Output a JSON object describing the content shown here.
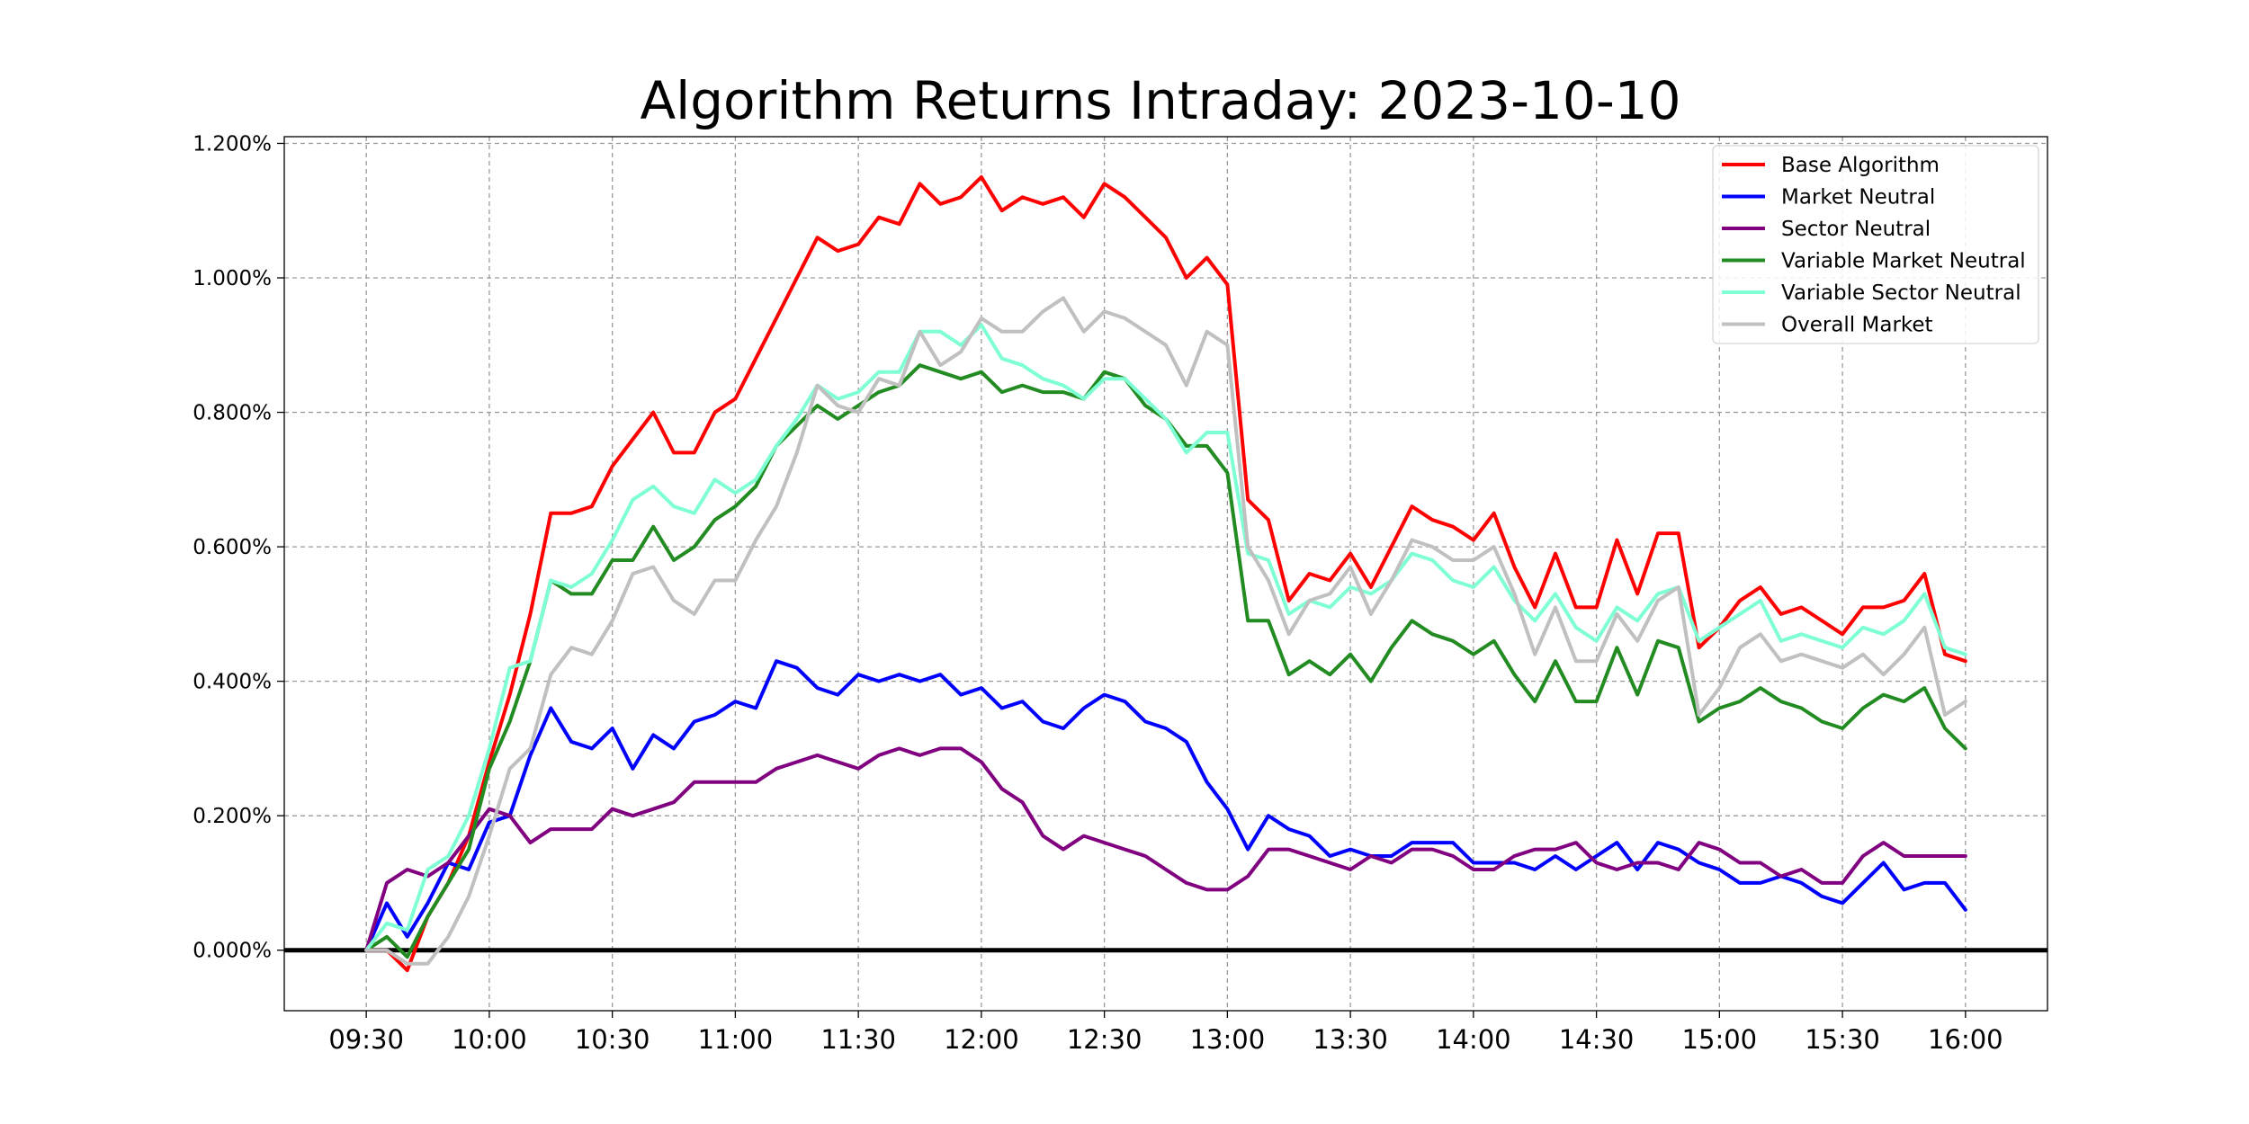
{
  "chart_data": {
    "type": "line",
    "title": "Algorithm Returns Intraday: 2023-10-10",
    "xlabel": "",
    "ylabel": "",
    "x_ticks": [
      "09:30",
      "10:00",
      "10:30",
      "11:00",
      "11:30",
      "12:00",
      "12:30",
      "13:00",
      "13:30",
      "14:00",
      "14:30",
      "15:00",
      "15:30",
      "16:00"
    ],
    "y_ticks": [
      "0.000%",
      "0.200%",
      "0.400%",
      "0.600%",
      "0.800%",
      "1.000%",
      "1.200%"
    ],
    "xlim": [
      "09:10",
      "16:20"
    ],
    "ylim": [
      -0.09,
      1.21
    ],
    "grid": true,
    "legend_position": "top-right",
    "baseline": 0,
    "x_step_minutes": 5,
    "x_start": "09:30",
    "series": [
      {
        "name": "Base Algorithm",
        "color": "#ff0000",
        "values": [
          0,
          0.0,
          -0.03,
          0.05,
          0.1,
          0.17,
          0.28,
          0.38,
          0.5,
          0.65,
          0.65,
          0.66,
          0.72,
          0.76,
          0.8,
          0.74,
          0.74,
          0.8,
          0.82,
          0.88,
          0.94,
          1.0,
          1.06,
          1.04,
          1.05,
          1.09,
          1.08,
          1.14,
          1.11,
          1.12,
          1.15,
          1.1,
          1.12,
          1.11,
          1.12,
          1.09,
          1.14,
          1.12,
          1.09,
          1.06,
          1.0,
          1.03,
          0.99,
          0.67,
          0.64,
          0.52,
          0.56,
          0.55,
          0.59,
          0.54,
          0.6,
          0.66,
          0.64,
          0.63,
          0.61,
          0.65,
          0.57,
          0.51,
          0.59,
          0.51,
          0.51,
          0.61,
          0.53,
          0.62,
          0.62,
          0.45,
          0.48,
          0.52,
          0.54,
          0.5,
          0.51,
          0.49,
          0.47,
          0.51,
          0.51,
          0.52,
          0.56,
          0.44,
          0.43
        ]
      },
      {
        "name": "Market Neutral",
        "color": "#0000ff",
        "values": [
          0,
          0.07,
          0.02,
          0.07,
          0.13,
          0.12,
          0.19,
          0.2,
          0.29,
          0.36,
          0.31,
          0.3,
          0.33,
          0.27,
          0.32,
          0.3,
          0.34,
          0.35,
          0.37,
          0.36,
          0.43,
          0.42,
          0.39,
          0.38,
          0.41,
          0.4,
          0.41,
          0.4,
          0.41,
          0.38,
          0.39,
          0.36,
          0.37,
          0.34,
          0.33,
          0.36,
          0.38,
          0.37,
          0.34,
          0.33,
          0.31,
          0.25,
          0.21,
          0.15,
          0.2,
          0.18,
          0.17,
          0.14,
          0.15,
          0.14,
          0.14,
          0.16,
          0.16,
          0.16,
          0.13,
          0.13,
          0.13,
          0.12,
          0.14,
          0.12,
          0.14,
          0.16,
          0.12,
          0.16,
          0.15,
          0.13,
          0.12,
          0.1,
          0.1,
          0.11,
          0.1,
          0.08,
          0.07,
          0.1,
          0.13,
          0.09,
          0.1,
          0.1,
          0.06
        ]
      },
      {
        "name": "Sector Neutral",
        "color": "#800080",
        "values": [
          0,
          0.1,
          0.12,
          0.11,
          0.13,
          0.17,
          0.21,
          0.2,
          0.16,
          0.18,
          0.18,
          0.18,
          0.21,
          0.2,
          0.21,
          0.22,
          0.25,
          0.25,
          0.25,
          0.25,
          0.27,
          0.28,
          0.29,
          0.28,
          0.27,
          0.29,
          0.3,
          0.29,
          0.3,
          0.3,
          0.28,
          0.24,
          0.22,
          0.17,
          0.15,
          0.17,
          0.16,
          0.15,
          0.14,
          0.12,
          0.1,
          0.09,
          0.09,
          0.11,
          0.15,
          0.15,
          0.14,
          0.13,
          0.12,
          0.14,
          0.13,
          0.15,
          0.15,
          0.14,
          0.12,
          0.12,
          0.14,
          0.15,
          0.15,
          0.16,
          0.13,
          0.12,
          0.13,
          0.13,
          0.12,
          0.16,
          0.15,
          0.13,
          0.13,
          0.11,
          0.12,
          0.1,
          0.1,
          0.14,
          0.16,
          0.14,
          0.14,
          0.14,
          0.14
        ]
      },
      {
        "name": "Variable Market Neutral",
        "color": "#228b22",
        "values": [
          0,
          0.02,
          -0.01,
          0.05,
          0.1,
          0.15,
          0.27,
          0.34,
          0.43,
          0.55,
          0.53,
          0.53,
          0.58,
          0.58,
          0.63,
          0.58,
          0.6,
          0.64,
          0.66,
          0.69,
          0.75,
          0.78,
          0.81,
          0.79,
          0.81,
          0.83,
          0.84,
          0.87,
          0.86,
          0.85,
          0.86,
          0.83,
          0.84,
          0.83,
          0.83,
          0.82,
          0.86,
          0.85,
          0.81,
          0.79,
          0.75,
          0.75,
          0.71,
          0.49,
          0.49,
          0.41,
          0.43,
          0.41,
          0.44,
          0.4,
          0.45,
          0.49,
          0.47,
          0.46,
          0.44,
          0.46,
          0.41,
          0.37,
          0.43,
          0.37,
          0.37,
          0.45,
          0.38,
          0.46,
          0.45,
          0.34,
          0.36,
          0.37,
          0.39,
          0.37,
          0.36,
          0.34,
          0.33,
          0.36,
          0.38,
          0.37,
          0.39,
          0.33,
          0.3
        ]
      },
      {
        "name": "Variable Sector Neutral",
        "color": "#7fffd4",
        "values": [
          0,
          0.04,
          0.03,
          0.12,
          0.14,
          0.2,
          0.3,
          0.42,
          0.43,
          0.55,
          0.54,
          0.56,
          0.61,
          0.67,
          0.69,
          0.66,
          0.65,
          0.7,
          0.68,
          0.7,
          0.75,
          0.79,
          0.84,
          0.82,
          0.83,
          0.86,
          0.86,
          0.92,
          0.92,
          0.9,
          0.93,
          0.88,
          0.87,
          0.85,
          0.84,
          0.82,
          0.85,
          0.85,
          0.82,
          0.79,
          0.74,
          0.77,
          0.77,
          0.59,
          0.58,
          0.5,
          0.52,
          0.51,
          0.54,
          0.53,
          0.55,
          0.59,
          0.58,
          0.55,
          0.54,
          0.57,
          0.52,
          0.49,
          0.53,
          0.48,
          0.46,
          0.51,
          0.49,
          0.53,
          0.54,
          0.46,
          0.48,
          0.5,
          0.52,
          0.46,
          0.47,
          0.46,
          0.45,
          0.48,
          0.47,
          0.49,
          0.53,
          0.45,
          0.44
        ]
      },
      {
        "name": "Overall Market",
        "color": "#c0c0c0",
        "values": [
          0,
          0.0,
          -0.02,
          -0.02,
          0.02,
          0.08,
          0.17,
          0.27,
          0.3,
          0.41,
          0.45,
          0.44,
          0.49,
          0.56,
          0.57,
          0.52,
          0.5,
          0.55,
          0.55,
          0.61,
          0.66,
          0.74,
          0.84,
          0.81,
          0.8,
          0.85,
          0.84,
          0.92,
          0.87,
          0.89,
          0.94,
          0.92,
          0.92,
          0.95,
          0.97,
          0.92,
          0.95,
          0.94,
          0.92,
          0.9,
          0.84,
          0.92,
          0.9,
          0.6,
          0.55,
          0.47,
          0.52,
          0.53,
          0.57,
          0.5,
          0.55,
          0.61,
          0.6,
          0.58,
          0.58,
          0.6,
          0.53,
          0.44,
          0.51,
          0.43,
          0.43,
          0.5,
          0.46,
          0.52,
          0.54,
          0.35,
          0.39,
          0.45,
          0.47,
          0.43,
          0.44,
          0.43,
          0.42,
          0.44,
          0.41,
          0.44,
          0.48,
          0.35,
          0.37
        ]
      }
    ]
  }
}
